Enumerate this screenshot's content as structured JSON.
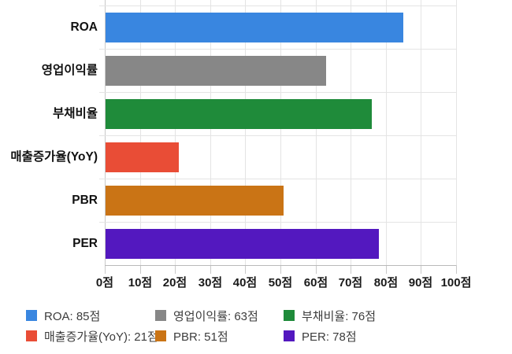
{
  "chart_data": {
    "type": "bar",
    "orientation": "horizontal",
    "title": "",
    "xlabel": "",
    "ylabel": "",
    "unit": "점",
    "categories": [
      "ROA",
      "영업이익률",
      "부채비율",
      "매출증가율(YoY)",
      "PBR",
      "PER"
    ],
    "values": [
      85,
      63,
      76,
      21,
      51,
      78
    ],
    "colors": [
      "#3986E0",
      "#878787",
      "#1F8B3A",
      "#E94D36",
      "#CA7415",
      "#5318BF"
    ],
    "xlim": [
      0,
      100
    ],
    "x_ticks": [
      0,
      10,
      20,
      30,
      40,
      50,
      60,
      70,
      80,
      90,
      100
    ],
    "x_tick_labels": [
      "0점",
      "10점",
      "20점",
      "30점",
      "40점",
      "50점",
      "60점",
      "70점",
      "80점",
      "90점",
      "100점"
    ],
    "grid": true,
    "legend_position": "bottom",
    "legend": [
      {
        "label": "ROA: 85점",
        "color": "#3986E0"
      },
      {
        "label": "영업이익률: 63점",
        "color": "#878787"
      },
      {
        "label": "부채비율: 76점",
        "color": "#1F8B3A"
      },
      {
        "label": "매출증가율(YoY): 21점",
        "color": "#E94D36"
      },
      {
        "label": "PBR: 51점",
        "color": "#CA7415"
      },
      {
        "label": "PER: 78점",
        "color": "#5318BF"
      }
    ]
  }
}
